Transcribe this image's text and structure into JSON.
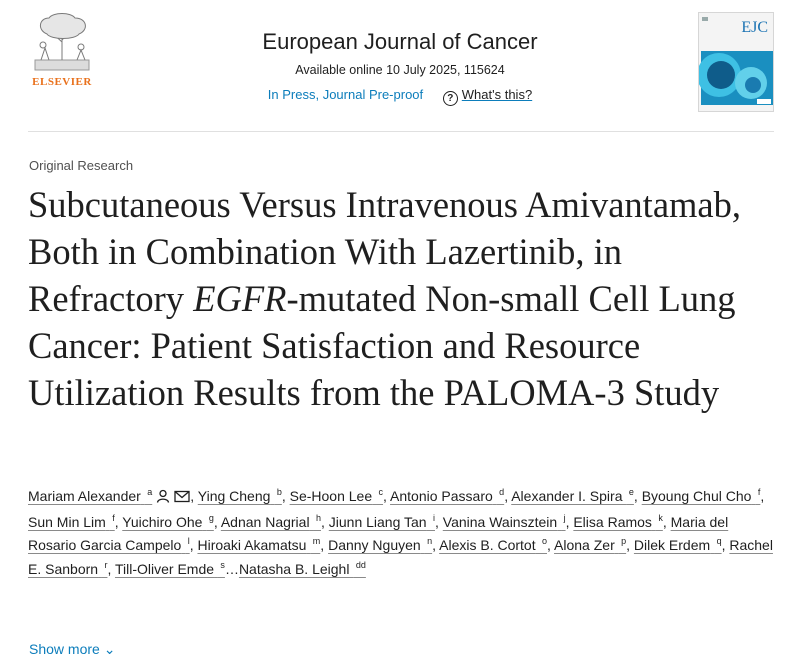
{
  "header": {
    "publisher": "ELSEVIER",
    "journal_title": "European Journal of Cancer",
    "availability": "Available online 10 July 2025, 115624",
    "status": "In Press, Journal Pre-proof",
    "help_link": "What's this?",
    "cover_label": "EJC"
  },
  "article": {
    "type": "Original Research",
    "title_part1": "Subcutaneous Versus Intravenous Amivantamab, Both in Combination With Lazertinib, in Refractory ",
    "title_italic": "EGFR",
    "title_part2": "-mutated Non-small Cell Lung Cancer: Patient Satisfaction and Resource Utilization Results from the PALOMA-3 Study"
  },
  "authors": [
    {
      "name": "Mariam Alexander",
      "aff": "a"
    },
    {
      "name": "Ying Cheng",
      "aff": "b"
    },
    {
      "name": "Se-Hoon Lee",
      "aff": "c"
    },
    {
      "name": "Antonio Passaro",
      "aff": "d"
    },
    {
      "name": "Alexander I. Spira",
      "aff": "e"
    },
    {
      "name": "Byoung Chul Cho",
      "aff": "f"
    },
    {
      "name": "Sun Min Lim",
      "aff": "f"
    },
    {
      "name": "Yuichiro Ohe",
      "aff": "g"
    },
    {
      "name": "Adnan Nagrial",
      "aff": "h"
    },
    {
      "name": "Jiunn Liang Tan",
      "aff": "i"
    },
    {
      "name": "Vanina Wainsztein",
      "aff": "j"
    },
    {
      "name": "Elisa Ramos",
      "aff": "k"
    },
    {
      "name": "Maria del Rosario Garcia Campelo",
      "aff": "l"
    },
    {
      "name": "Hiroaki Akamatsu",
      "aff": "m"
    },
    {
      "name": "Danny Nguyen",
      "aff": "n"
    },
    {
      "name": "Alexis B. Cortot",
      "aff": "o"
    },
    {
      "name": "Alona Zer",
      "aff": "p"
    },
    {
      "name": "Dilek Erdem",
      "aff": "q"
    },
    {
      "name": "Rachel E. Sanborn",
      "aff": "r"
    },
    {
      "name": "Till-Oliver Emde",
      "aff": "s"
    },
    {
      "name": "Natasha B. Leighl",
      "aff": "dd"
    }
  ],
  "ellipsis": "…",
  "show_more": "Show more",
  "colors": {
    "link": "#0c7dbb",
    "elsevier_orange": "#e9711c",
    "text": "#1f1f1f"
  }
}
